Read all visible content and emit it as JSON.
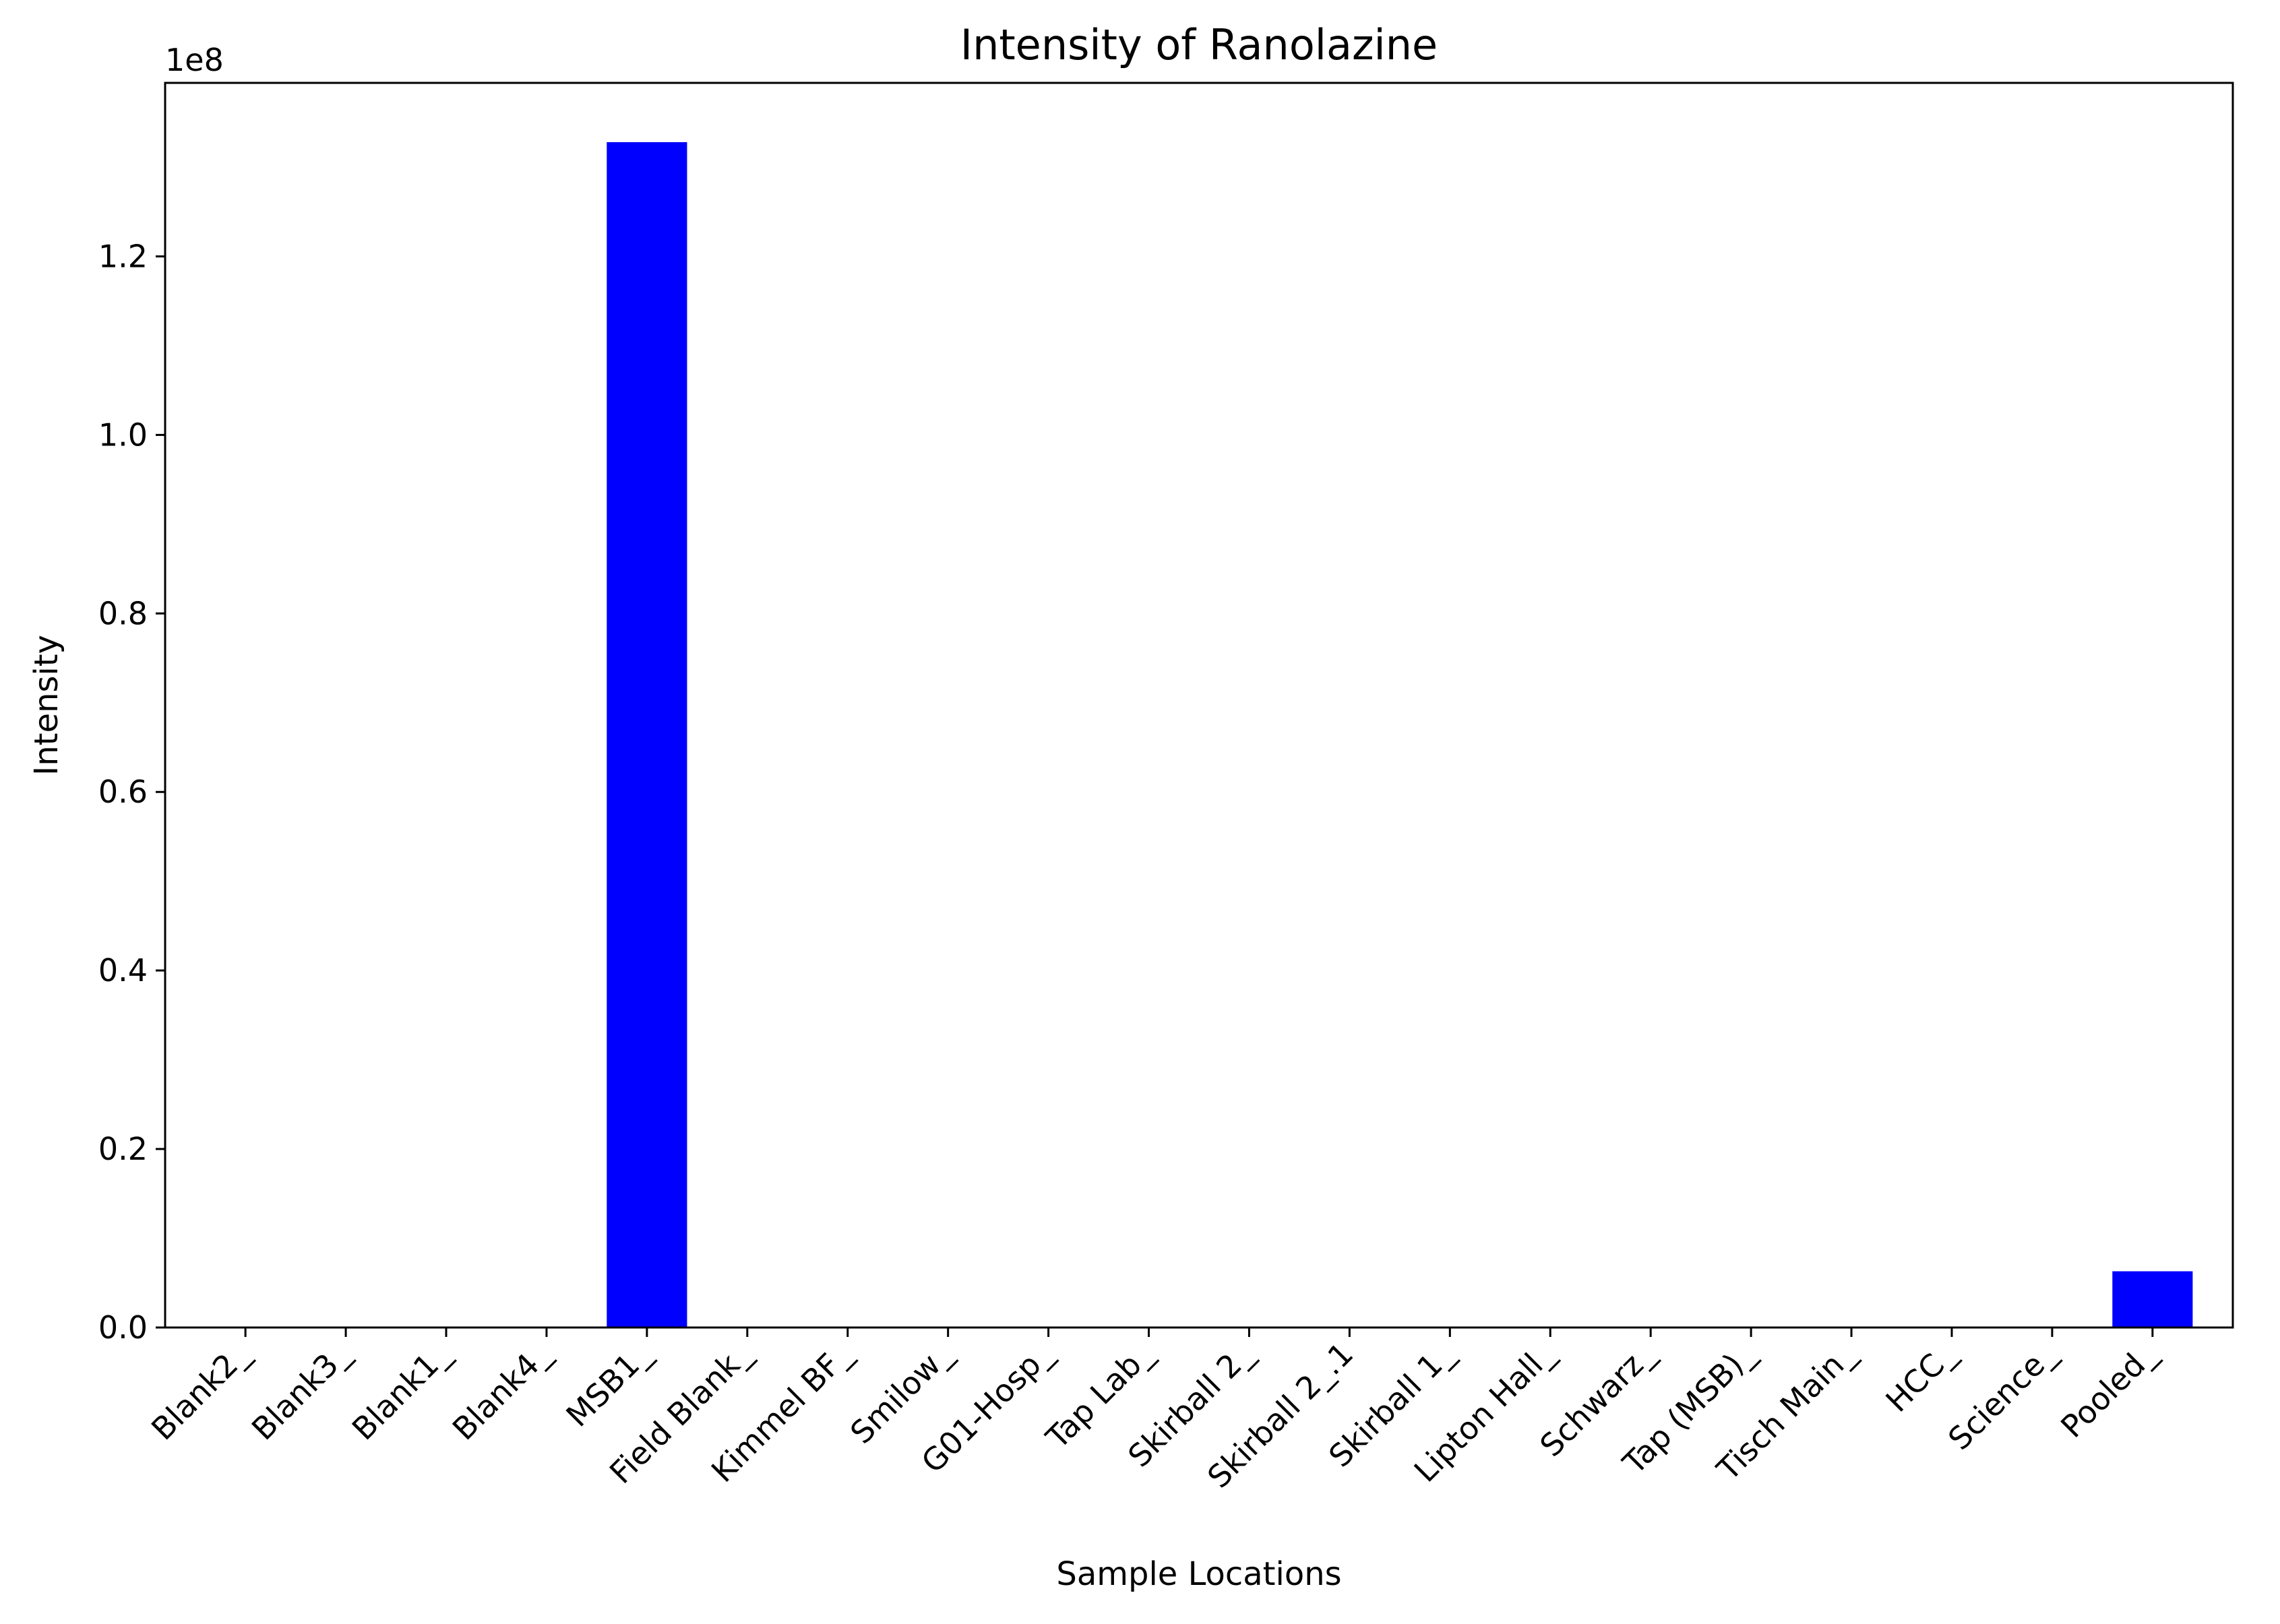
{
  "chart_data": {
    "type": "bar",
    "title": "Intensity of Ranolazine",
    "xlabel": "Sample Locations",
    "ylabel": "Intensity",
    "y_offset_label": "1e8",
    "categories": [
      "Blank2_",
      "Blank3_",
      "Blank1_",
      "Blank4_",
      "MSB1_",
      "Field Blank_",
      "Kimmel BF_",
      "Smilow_",
      "G01-Hosp_",
      "Tap Lab_",
      "Skirball 2_",
      "Skirball 2_.1",
      "Skirball 1_",
      "Lipton Hall_",
      "Schwarz_",
      "Tap (MSB)_",
      "Tisch Main_",
      "HCC_",
      "Science_",
      "Pooled_"
    ],
    "values": [
      0,
      0,
      0,
      0,
      132800000,
      0,
      0,
      0,
      0,
      0,
      0,
      0,
      0,
      0,
      0,
      0,
      0,
      0,
      0,
      6300000
    ],
    "ylim": [
      0,
      139440000
    ],
    "yticks": [
      0,
      20000000,
      40000000,
      60000000,
      80000000,
      100000000,
      120000000
    ],
    "ytick_labels": [
      "0.0",
      "0.2",
      "0.4",
      "0.6",
      "0.8",
      "1.0",
      "1.2"
    ],
    "bar_color": "#0000ff",
    "grid": false,
    "legend": "none"
  }
}
